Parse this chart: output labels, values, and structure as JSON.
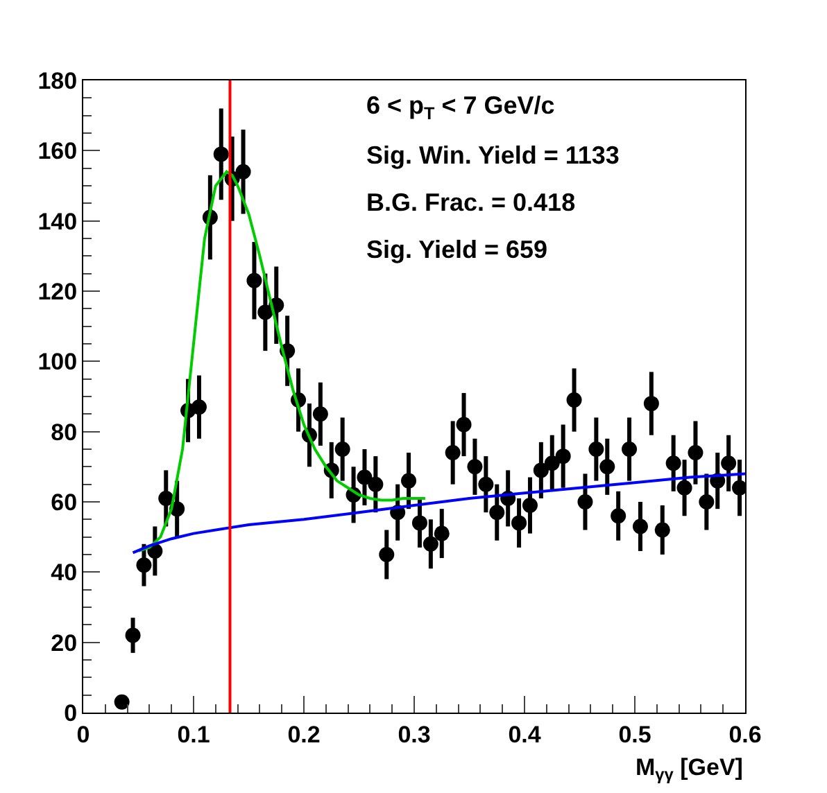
{
  "chart_data": {
    "type": "scatter",
    "xlabel": "M$_{γγ}$ [GeV]",
    "annotations": [
      "6 < p$_{T}$ < 7 GeV/c",
      "Sig. Win. Yield = 1133",
      "B.G. Frac. = 0.418",
      "Sig. Yield = 659"
    ],
    "xlim": [
      0,
      0.6
    ],
    "xticks": [
      0,
      0.1,
      0.2,
      0.3,
      0.4,
      0.5,
      0.6
    ],
    "ylim": [
      0,
      180
    ],
    "yticks": [
      0,
      20,
      40,
      60,
      80,
      100,
      120,
      140,
      160,
      180
    ],
    "ref_lines": [
      {
        "axis": "x",
        "value": 0.133,
        "color": "#ff0000",
        "line_style": "solid"
      }
    ],
    "series": [
      {
        "color": "#000000",
        "marker": "circle",
        "x": [
          0.035,
          0.045,
          0.055,
          0.065,
          0.075,
          0.085,
          0.095,
          0.105,
          0.115,
          0.125,
          0.135,
          0.145,
          0.155,
          0.165,
          0.175,
          0.185,
          0.195,
          0.205,
          0.215,
          0.225,
          0.235,
          0.245,
          0.255,
          0.265,
          0.275,
          0.285,
          0.295,
          0.305,
          0.315,
          0.325,
          0.335,
          0.345,
          0.355,
          0.365,
          0.375,
          0.385,
          0.395,
          0.405,
          0.415,
          0.425,
          0.435,
          0.445,
          0.455,
          0.465,
          0.475,
          0.485,
          0.495,
          0.505,
          0.515,
          0.525,
          0.535,
          0.545,
          0.555,
          0.565,
          0.575,
          0.585,
          0.595
        ],
        "values": [
          3,
          22,
          42,
          46,
          61,
          58,
          86,
          87,
          141,
          159,
          152,
          154,
          123,
          114,
          116,
          103,
          89,
          79,
          85,
          69,
          75,
          62,
          67,
          65,
          45,
          57,
          66,
          54,
          48,
          51,
          74,
          82,
          70,
          65,
          57,
          61,
          54,
          59,
          69,
          71,
          73,
          89,
          60,
          75,
          70,
          56,
          75,
          53,
          88,
          52,
          71,
          64,
          74,
          60,
          66,
          71,
          64
        ],
        "errors": [
          2,
          5,
          6,
          7,
          8,
          8,
          9,
          9,
          12,
          13,
          12,
          12,
          11,
          11,
          11,
          10,
          9,
          9,
          9,
          8,
          9,
          8,
          8,
          8,
          7,
          8,
          8,
          7,
          7,
          7,
          9,
          9,
          8,
          8,
          8,
          8,
          7,
          8,
          8,
          8,
          9,
          9,
          8,
          9,
          8,
          7,
          9,
          7,
          9,
          7,
          8,
          8,
          9,
          8,
          8,
          8,
          8
        ]
      },
      {
        "type": "line",
        "color": "#00cc00",
        "line_style": "solid",
        "marker": "none",
        "x": [
          0.05,
          0.06,
          0.07,
          0.08,
          0.09,
          0.1,
          0.11,
          0.12,
          0.13,
          0.135,
          0.14,
          0.15,
          0.16,
          0.17,
          0.18,
          0.19,
          0.2,
          0.21,
          0.22,
          0.23,
          0.24,
          0.25,
          0.26,
          0.27,
          0.28,
          0.29,
          0.3,
          0.31
        ],
        "values": [
          46,
          47,
          50,
          58,
          75,
          105,
          135,
          150,
          154,
          153,
          150,
          142,
          130,
          117,
          104,
          92,
          82,
          75,
          70,
          66,
          64,
          62,
          61,
          60.5,
          60.5,
          61,
          61,
          61
        ]
      },
      {
        "type": "line",
        "color": "#0000ff",
        "line_style": "solid",
        "marker": "none",
        "x": [
          0.045,
          0.06,
          0.08,
          0.1,
          0.15,
          0.2,
          0.25,
          0.3,
          0.35,
          0.4,
          0.45,
          0.5,
          0.55,
          0.6
        ],
        "values": [
          45.5,
          47.5,
          49.5,
          51,
          53.5,
          55,
          57,
          59,
          61,
          62.5,
          64,
          65.5,
          67,
          68
        ]
      }
    ]
  }
}
